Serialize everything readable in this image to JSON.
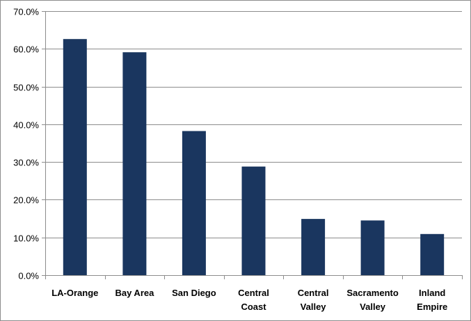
{
  "chart_data": {
    "type": "bar",
    "title": "",
    "xlabel": "",
    "ylabel": "",
    "categories": [
      [
        "LA-Orange"
      ],
      [
        "Bay Area"
      ],
      [
        "San Diego"
      ],
      [
        "Central",
        "Coast"
      ],
      [
        "Central",
        "Valley"
      ],
      [
        "Sacramento",
        "Valley"
      ],
      [
        "Inland",
        "Empire"
      ]
    ],
    "values": [
      62.6,
      59.1,
      38.2,
      28.8,
      14.9,
      14.5,
      10.9
    ],
    "ylim": [
      0,
      70
    ],
    "yticks": [
      0,
      10,
      20,
      30,
      40,
      50,
      60,
      70
    ],
    "ytick_labels": [
      "0.0%",
      "10.0%",
      "20.0%",
      "30.0%",
      "40.0%",
      "50.0%",
      "60.0%",
      "70.0%"
    ],
    "grid": true,
    "legend": "none",
    "colors": {
      "bar": "#1a365f",
      "grid": "#8c8c8c",
      "axis": "#8c8c8c"
    }
  }
}
